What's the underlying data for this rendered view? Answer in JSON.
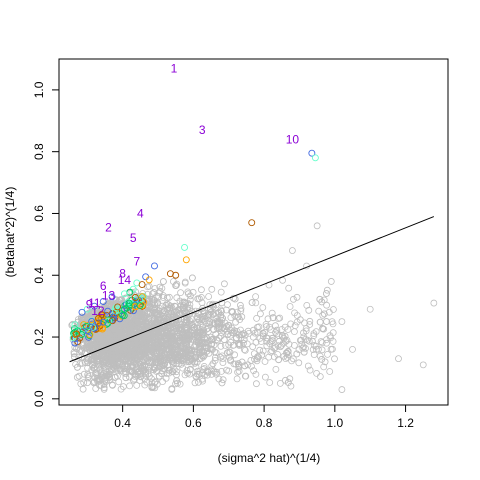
{
  "chart_data": {
    "type": "scatter",
    "xlabel": "(sigma^2 hat)^(1/4)",
    "ylabel": "(betahat^2)^(1/4)",
    "xlim": [
      0.22,
      1.32
    ],
    "ylim": [
      -0.02,
      1.1
    ],
    "x_ticks": [
      0.4,
      0.6,
      0.8,
      1.0,
      1.2
    ],
    "y_ticks": [
      0.0,
      0.2,
      0.4,
      0.6,
      0.8,
      1.0
    ],
    "grid": false,
    "background_points": {
      "color": "#bebebe",
      "x_range": [
        0.25,
        1.1
      ],
      "y_range": [
        0.03,
        0.53
      ],
      "approx_count": 3000
    },
    "regression_line": {
      "x": [
        0.25,
        1.28
      ],
      "y": [
        0.12,
        0.59
      ],
      "color": "#000000"
    },
    "highlighted_points": [
      {
        "x": 0.935,
        "y": 0.795,
        "color": "#4169e1"
      },
      {
        "x": 0.945,
        "y": 0.78,
        "color": "#66ffcc"
      },
      {
        "x": 0.765,
        "y": 0.57,
        "color": "#b05a00"
      },
      {
        "x": 0.575,
        "y": 0.49,
        "color": "#66ffcc"
      },
      {
        "x": 0.58,
        "y": 0.45,
        "color": "#ffa500"
      },
      {
        "x": 0.49,
        "y": 0.43,
        "color": "#4169e1"
      },
      {
        "x": 0.535,
        "y": 0.405,
        "color": "#b05a00"
      },
      {
        "x": 0.55,
        "y": 0.4,
        "color": "#b05a00"
      },
      {
        "x": 0.465,
        "y": 0.395,
        "color": "#4169e1"
      },
      {
        "x": 0.475,
        "y": 0.385,
        "color": "#ffa500"
      },
      {
        "x": 0.44,
        "y": 0.375,
        "color": "#66ffcc"
      },
      {
        "x": 0.455,
        "y": 0.37,
        "color": "#b05a00"
      },
      {
        "x": 0.43,
        "y": 0.355,
        "color": "#66ffcc"
      },
      {
        "x": 0.42,
        "y": 0.345,
        "color": "#00cc66"
      },
      {
        "x": 0.405,
        "y": 0.34,
        "color": "#66ffcc"
      },
      {
        "x": 0.37,
        "y": 0.33,
        "color": "#4169e1"
      },
      {
        "x": 0.345,
        "y": 0.315,
        "color": "#4169e1"
      },
      {
        "x": 0.32,
        "y": 0.3,
        "color": "#4169e1"
      },
      {
        "x": 0.3,
        "y": 0.29,
        "color": "#66ffcc"
      },
      {
        "x": 0.285,
        "y": 0.28,
        "color": "#4169e1"
      },
      {
        "x": 0.265,
        "y": 0.24,
        "color": "#66ffcc"
      },
      {
        "x": 0.27,
        "y": 0.21,
        "color": "#b05a00"
      }
    ],
    "labels": [
      {
        "text": "1",
        "x": 0.545,
        "y": 1.07
      },
      {
        "text": "3",
        "x": 0.625,
        "y": 0.87
      },
      {
        "text": "10",
        "x": 0.88,
        "y": 0.84
      },
      {
        "text": "4",
        "x": 0.45,
        "y": 0.6
      },
      {
        "text": "2",
        "x": 0.36,
        "y": 0.555
      },
      {
        "text": "5",
        "x": 0.43,
        "y": 0.52
      },
      {
        "text": "7",
        "x": 0.44,
        "y": 0.445
      },
      {
        "text": "8",
        "x": 0.4,
        "y": 0.405
      },
      {
        "text": "14",
        "x": 0.405,
        "y": 0.385
      },
      {
        "text": "6",
        "x": 0.345,
        "y": 0.365
      },
      {
        "text": "13",
        "x": 0.36,
        "y": 0.335
      },
      {
        "text": "9",
        "x": 0.305,
        "y": 0.305
      },
      {
        "text": "11",
        "x": 0.32,
        "y": 0.31
      },
      {
        "text": "12",
        "x": 0.33,
        "y": 0.285
      }
    ],
    "label_color": "#8b00d6"
  }
}
